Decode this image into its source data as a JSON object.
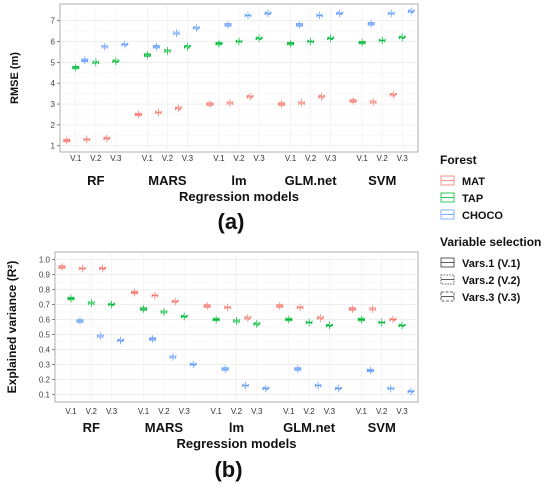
{
  "legend": {
    "color_title": "Forest",
    "color_items": [
      {
        "label": "MAT",
        "color": "#F8766D"
      },
      {
        "label": "TAP",
        "color": "#00BA38"
      },
      {
        "label": "CHOCO",
        "color": "#619CFF"
      }
    ],
    "shape_title": "Variable selection",
    "shape_items": [
      {
        "label": "Vars.1 (V.1)",
        "style": "solid"
      },
      {
        "label": "Vars.2 (V.2)",
        "style": "dotted"
      },
      {
        "label": "Vars.3 (V.3)",
        "style": "dashed"
      }
    ]
  },
  "chart_data": [
    {
      "type": "box",
      "panel_label": "(a)",
      "xlabel": "Regression models",
      "ylabel": "RMSE (m)",
      "ylim": [
        0.7,
        7.8
      ],
      "yticks": [
        1,
        2,
        3,
        4,
        5,
        6,
        7
      ],
      "groups": [
        "RF",
        "MARS",
        "lm",
        "GLM.net",
        "SVM"
      ],
      "subgroups": [
        "V.1",
        "V.2",
        "V.3"
      ],
      "series": [
        {
          "name": "MAT",
          "values": [
            [
              1.25,
              1.3,
              1.35
            ],
            [
              2.5,
              2.6,
              2.8
            ],
            [
              3.0,
              3.05,
              3.35
            ],
            [
              3.0,
              3.05,
              3.35
            ],
            [
              3.15,
              3.1,
              3.45
            ]
          ]
        },
        {
          "name": "TAP",
          "values": [
            [
              4.75,
              5.0,
              5.05
            ],
            [
              5.35,
              5.55,
              5.75
            ],
            [
              5.9,
              6.0,
              6.15
            ],
            [
              5.9,
              6.0,
              6.15
            ],
            [
              5.95,
              6.05,
              6.2
            ]
          ]
        },
        {
          "name": "CHOCO",
          "values": [
            [
              5.1,
              5.75,
              5.85
            ],
            [
              5.75,
              6.4,
              6.65
            ],
            [
              6.8,
              7.25,
              7.35
            ],
            [
              6.8,
              7.25,
              7.35
            ],
            [
              6.85,
              7.35,
              7.45
            ]
          ]
        }
      ]
    },
    {
      "type": "box",
      "panel_label": "(b)",
      "xlabel": "Regression models",
      "ylabel": "Explained variance (R²)",
      "ylim": [
        0.05,
        1.05
      ],
      "yticks": [
        0.1,
        0.2,
        0.3,
        0.4,
        0.5,
        0.6,
        0.7,
        0.8,
        0.9,
        1.0
      ],
      "ytick_labels": [
        "0.1",
        "0.2",
        "0.3",
        "0.4",
        "0.5",
        "0.6",
        "0.7",
        "0.8",
        "0.9",
        "1.0"
      ],
      "groups": [
        "RF",
        "MARS",
        "lm",
        "GLM.net",
        "SVM"
      ],
      "subgroups": [
        "V.1",
        "V.2",
        "V.3"
      ],
      "series": [
        {
          "name": "MAT",
          "values": [
            [
              0.95,
              0.94,
              0.94
            ],
            [
              0.78,
              0.76,
              0.72
            ],
            [
              0.69,
              0.68,
              0.61
            ],
            [
              0.69,
              0.68,
              0.61
            ],
            [
              0.67,
              0.67,
              0.6
            ]
          ]
        },
        {
          "name": "TAP",
          "values": [
            [
              0.74,
              0.71,
              0.7
            ],
            [
              0.67,
              0.65,
              0.62
            ],
            [
              0.6,
              0.59,
              0.57
            ],
            [
              0.6,
              0.58,
              0.56
            ],
            [
              0.6,
              0.58,
              0.56
            ]
          ]
        },
        {
          "name": "CHOCO",
          "values": [
            [
              0.59,
              0.49,
              0.46
            ],
            [
              0.47,
              0.35,
              0.3
            ],
            [
              0.27,
              0.16,
              0.14
            ],
            [
              0.27,
              0.16,
              0.14
            ],
            [
              0.26,
              0.14,
              0.12
            ]
          ]
        }
      ]
    }
  ]
}
